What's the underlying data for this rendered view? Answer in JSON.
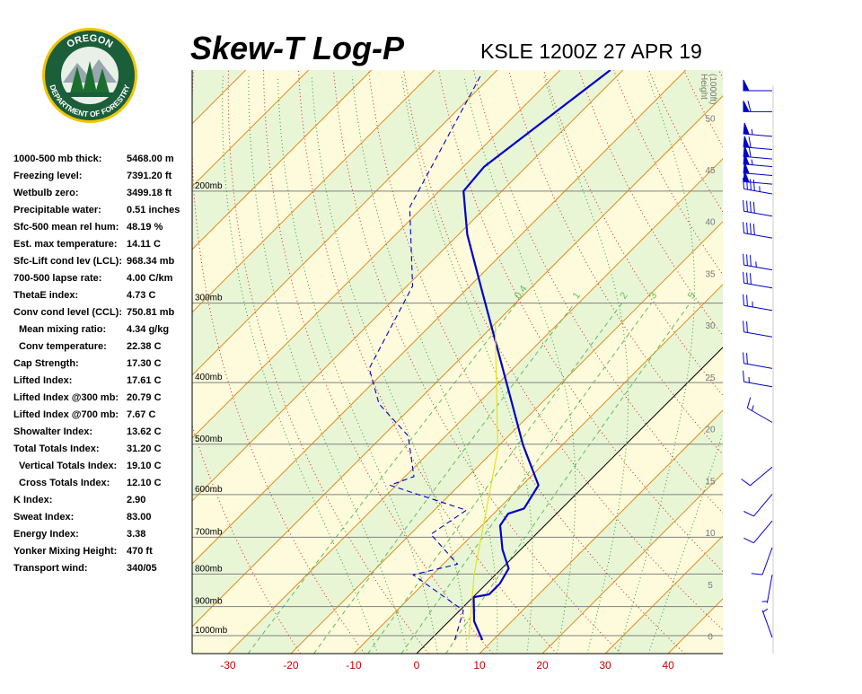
{
  "logo": {
    "top_text": "OREGON",
    "bottom_text": "DEPARTMENT OF FORESTRY"
  },
  "indices": [
    {
      "label": "1000-500 mb thick:",
      "value": "5468.00 m"
    },
    {
      "label": "Freezing level:",
      "value": "7391.20 ft"
    },
    {
      "label": "Wetbulb zero:",
      "value": "3499.18 ft"
    },
    {
      "label": "Precipitable water:",
      "value": "0.51 inches"
    },
    {
      "label": "Sfc-500 mean rel hum:",
      "value": "48.19 %"
    },
    {
      "label": "Est. max temperature:",
      "value": "14.11 C"
    },
    {
      "label": "Sfc-Lift cond lev (LCL):",
      "value": "968.34 mb"
    },
    {
      "label": "700-500 lapse rate:",
      "value": "4.00 C/km"
    },
    {
      "label": "ThetaE index:",
      "value": "4.73 C"
    },
    {
      "label": "Conv cond level (CCL):",
      "value": "750.81 mb"
    },
    {
      "label": "Mean mixing ratio:",
      "value": "4.34 g/kg",
      "indent": true
    },
    {
      "label": "Conv temperature:",
      "value": "22.38 C",
      "indent": true
    },
    {
      "label": "Cap Strength:",
      "value": "17.30 C"
    },
    {
      "label": "Lifted Index:",
      "value": "17.61 C"
    },
    {
      "label": "Lifted Index @300 mb:",
      "value": "20.79 C"
    },
    {
      "label": "Lifted Index @700 mb:",
      "value": "7.67 C"
    },
    {
      "label": "Showalter Index:",
      "value": "13.62 C"
    },
    {
      "label": "Total Totals Index:",
      "value": "31.20 C"
    },
    {
      "label": "Vertical Totals Index:",
      "value": "19.10 C",
      "indent": true
    },
    {
      "label": "Cross Totals Index:",
      "value": "12.10 C",
      "indent": true
    },
    {
      "label": "K Index:",
      "value": "2.90"
    },
    {
      "label": "Sweat Index:",
      "value": "83.00"
    },
    {
      "label": "Energy Index:",
      "value": "3.38"
    },
    {
      "label": "Yonker Mixing Height:",
      "value": "470 ft"
    },
    {
      "label": "Transport wind:",
      "value": "340/05"
    }
  ],
  "chart_data": {
    "type": "skewt",
    "title": "Skew-T Log-P",
    "subtitle": "KSLE 1200Z 27 APR 19",
    "xlim": [
      -35.7,
      48.7
    ],
    "xticks": [
      -30,
      -20,
      -10,
      0,
      10,
      20,
      30,
      40
    ],
    "ylim": [
      1067,
      129
    ],
    "log_y": true,
    "yticks": [
      {
        "value": 1000,
        "label": "1000mb"
      },
      {
        "value": 900,
        "label": "900mb"
      },
      {
        "value": 800,
        "label": "800mb"
      },
      {
        "value": 700,
        "label": "700mb"
      },
      {
        "value": 600,
        "label": "600mb"
      },
      {
        "value": 500,
        "label": "500mb"
      },
      {
        "value": 400,
        "label": "400mb"
      },
      {
        "value": 300,
        "label": "300mb"
      },
      {
        "value": 200,
        "label": "200mb"
      }
    ],
    "y2_label": "Height",
    "y2_units": "(1000ft)",
    "y2lim": [
      -1.6,
      54.7
    ],
    "y2ticks": [
      0,
      5,
      10,
      15,
      20,
      25,
      30,
      35,
      40,
      45,
      50
    ],
    "isotherms": [
      -130,
      -120,
      -110,
      -100,
      -90,
      -80,
      -70,
      -60,
      -50,
      -40,
      -30,
      -20,
      -10,
      0,
      10,
      20,
      30,
      40,
      50
    ],
    "isotherm_color": "#e08a1e",
    "highlight_isotherm": 0,
    "highlight_color": "#000000",
    "band_colors": [
      "#e9f6d6",
      "#fdfbdc"
    ],
    "dry_adiabats": [
      250,
      260,
      270,
      280,
      290,
      300,
      310,
      320,
      330,
      340,
      350,
      360,
      370,
      380,
      390,
      400,
      410,
      420,
      430,
      440,
      450,
      460,
      470,
      480
    ],
    "dry_adiabat_color": "#d42020",
    "moist_adiabats": [
      -10,
      -5,
      0,
      5,
      10,
      15,
      20,
      25,
      30,
      35
    ],
    "moist_adiabat_color": "#2a9a2a",
    "mixing_ratios": [
      0.4,
      1,
      2,
      3,
      5
    ],
    "mixing_ratio_top": 300,
    "mixing_ratio_color": "#5cbf5c",
    "series": [
      {
        "color": "#0000cc",
        "width": 2.2,
        "dashed": false,
        "pressure": [
          1016,
          949,
          870,
          861,
          828,
          784,
          732,
          671,
          643,
          631,
          580,
          501,
          403,
          288,
          234,
          200,
          183,
          129
        ],
        "values": [
          8.3,
          4.0,
          0.1,
          2.1,
          2.1,
          1.1,
          -2.9,
          -7.1,
          -7.7,
          -6.0,
          -7.4,
          -16.3,
          -28.4,
          -47.1,
          -58.6,
          -66.1,
          -66.7,
          -62.0
        ]
      },
      {
        "color": "#0000cc",
        "width": 1.1,
        "dashed": true,
        "pressure": [
          1016,
          913,
          802,
          772,
          693,
          635,
          580,
          562,
          485,
          432,
          380,
          282,
          212,
          132
        ],
        "values": [
          3.9,
          0.6,
          -13.1,
          -7.7,
          -16.7,
          -14.9,
          -31.0,
          -28.6,
          -36.0,
          -45.7,
          -52.9,
          -59.1,
          -72.1,
          -81.7
        ]
      },
      {
        "color": "#e8e020",
        "width": 1.2,
        "dashed": false,
        "pressure": [
          1013,
          802,
          509,
          323
        ],
        "values": [
          6.0,
          -3.4,
          -19.6,
          -40.0
        ]
      }
    ],
    "winds": {
      "color": "#0000cc",
      "pressure": [
        139,
        150,
        164,
        172,
        178,
        183,
        189,
        195,
        202,
        219,
        237,
        266,
        284,
        308,
        339,
        380,
        406,
        462,
        543,
        599,
        660,
        727,
        802,
        1006
      ],
      "direction": [
        270,
        270,
        275,
        275,
        275,
        275,
        275,
        275,
        280,
        280,
        280,
        280,
        280,
        280,
        280,
        280,
        280,
        300,
        230,
        220,
        220,
        200,
        190,
        340
      ],
      "speed": [
        50,
        60,
        55,
        60,
        60,
        55,
        50,
        50,
        45,
        40,
        40,
        35,
        30,
        25,
        20,
        20,
        15,
        15,
        10,
        10,
        10,
        10,
        5,
        5
      ]
    }
  }
}
